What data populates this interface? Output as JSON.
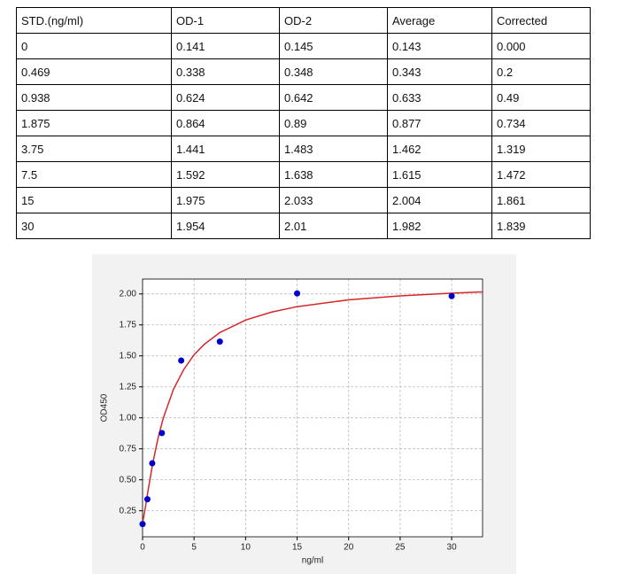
{
  "table": {
    "header": [
      "STD.(ng/ml)",
      "OD-1",
      "OD-2",
      "Average",
      "Corrected"
    ],
    "rows": [
      [
        "0",
        "0.141",
        "0.145",
        "0.143",
        "0.000"
      ],
      [
        "0.469",
        "0.338",
        "0.348",
        "0.343",
        "0.2"
      ],
      [
        "0.938",
        "0.624",
        "0.642",
        "0.633",
        "0.49"
      ],
      [
        "1.875",
        "0.864",
        "0.89",
        "0.877",
        "0.734"
      ],
      [
        "3.75",
        "1.441",
        "1.483",
        "1.462",
        "1.319"
      ],
      [
        "7.5",
        "1.592",
        "1.638",
        "1.615",
        "1.472"
      ],
      [
        "15",
        "1.975",
        "2.033",
        "2.004",
        "1.861"
      ],
      [
        "30",
        "1.954",
        "2.01",
        "1.982",
        "1.839"
      ]
    ]
  },
  "chart_data": {
    "type": "scatter",
    "xlabel": "ng/ml",
    "ylabel": "OD450",
    "points": {
      "color": "#0000cc",
      "x": [
        0,
        0.469,
        0.938,
        1.875,
        3.75,
        7.5,
        15,
        30
      ],
      "values": [
        0.143,
        0.343,
        0.633,
        0.877,
        1.462,
        1.615,
        2.004,
        1.982
      ]
    },
    "fit": {
      "color": "#d62728",
      "x": [
        0,
        0.25,
        0.5,
        1,
        1.5,
        2,
        3,
        4,
        5,
        6,
        7.5,
        10,
        12.5,
        15,
        20,
        25,
        30,
        33
      ],
      "values": [
        0.15,
        0.266,
        0.397,
        0.637,
        0.835,
        0.995,
        1.231,
        1.39,
        1.509,
        1.594,
        1.688,
        1.789,
        1.853,
        1.897,
        1.952,
        1.984,
        2.006,
        2.016
      ]
    },
    "xlim": [
      0,
      33
    ],
    "ylim": [
      0.04,
      2.12
    ],
    "xticks": [
      0,
      5,
      10,
      15,
      20,
      25,
      30
    ],
    "yticks": [
      {
        "value": 0.25,
        "label": "0.25"
      },
      {
        "value": 0.5,
        "label": "0.50"
      },
      {
        "value": 0.75,
        "label": "0.75"
      },
      {
        "value": 1,
        "label": "1.00"
      },
      {
        "value": 1.25,
        "label": "1.25"
      },
      {
        "value": 1.5,
        "label": "1.50"
      },
      {
        "value": 1.75,
        "label": "1.75"
      },
      {
        "value": 2,
        "label": "2.00"
      }
    ],
    "grid": true
  }
}
